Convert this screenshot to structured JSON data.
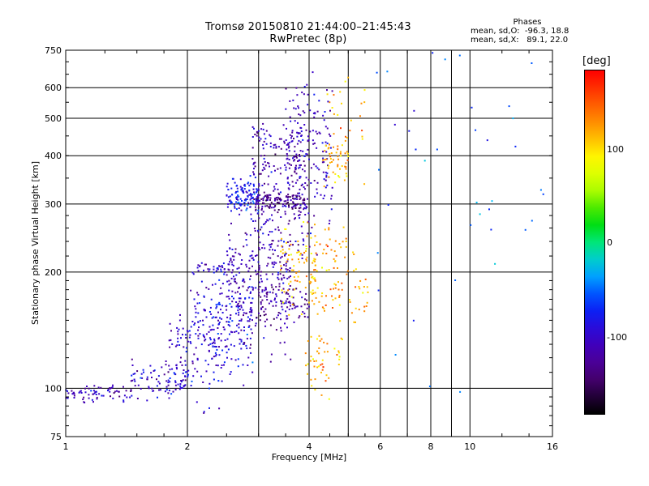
{
  "title_line1": "Tromsø 20150810 21:44:00–21:45:43",
  "title_line2": "RwPretec (8p)",
  "stats": {
    "header": "Phases",
    "row_o": "mean, sd,O:  -96.3, 18.8",
    "row_x": "mean, sd,X:   89.1, 22.0"
  },
  "colorbar": {
    "unit_label": "[deg]",
    "ticks": [
      "100",
      "0",
      "-100"
    ],
    "tick_values": [
      100,
      0,
      -100
    ],
    "range": [
      -180,
      180
    ]
  },
  "chart_data": {
    "type": "scatter",
    "xlabel": "Frequency [MHz]",
    "ylabel": "Stationary phase Virtual Height [km]",
    "xscale": "log",
    "yscale": "log",
    "xlim": [
      1,
      16
    ],
    "ylim": [
      75,
      750
    ],
    "x_ticks": [
      1,
      2,
      4,
      6,
      8,
      10,
      16
    ],
    "x_tick_labels": [
      "1",
      "2",
      "4",
      "6",
      "8",
      "10",
      "16"
    ],
    "y_ticks": [
      75,
      100,
      200,
      300,
      400,
      500,
      600,
      750
    ],
    "y_tick_labels": [
      "75",
      "100",
      "200",
      "300",
      "400",
      "500",
      "600",
      "750"
    ],
    "grid_x": [
      2,
      3,
      4,
      5,
      6,
      7,
      8,
      9,
      10,
      16
    ],
    "grid_y": [
      100,
      200,
      300,
      400,
      500,
      600
    ],
    "clusters": [
      {
        "f_range": [
          1.0,
          1.45
        ],
        "h_center": 97,
        "h_spread": 2.5,
        "phase": -110,
        "count": 70
      },
      {
        "f_range": [
          1.45,
          2.0
        ],
        "h_center": 105,
        "h_spread": 6,
        "phase": -100,
        "count": 90
      },
      {
        "f_range": [
          1.8,
          2.6
        ],
        "h_center": 125,
        "h_spread": 15,
        "phase": -95,
        "count": 120
      },
      {
        "f_range": [
          2.0,
          2.9
        ],
        "h_center": 150,
        "h_spread": 22,
        "phase": -90,
        "count": 180
      },
      {
        "f_range": [
          2.1,
          2.5
        ],
        "h_center": 205,
        "h_spread": 3,
        "phase": -100,
        "count": 30
      },
      {
        "f_range": [
          2.5,
          3.6
        ],
        "h_center": 195,
        "h_spread": 35,
        "phase": -110,
        "count": 250
      },
      {
        "f_range": [
          3.0,
          4.0
        ],
        "h_center": 165,
        "h_spread": 8,
        "phase": -120,
        "count": 80
      },
      {
        "f_range": [
          3.4,
          4.2
        ],
        "h_center": 210,
        "h_spread": 25,
        "phase": 110,
        "count": 90
      },
      {
        "f_range": [
          3.9,
          4.9
        ],
        "h_center": 120,
        "h_spread": 10,
        "phase": 115,
        "count": 50
      },
      {
        "f_range": [
          4.0,
          5.6
        ],
        "h_center": 180,
        "h_spread": 15,
        "phase": 120,
        "count": 60
      },
      {
        "f_range": [
          4.2,
          5.2
        ],
        "h_center": 225,
        "h_spread": 18,
        "phase": 125,
        "count": 30
      },
      {
        "f_range": [
          2.5,
          3.0
        ],
        "h_center": 312,
        "h_spread": 16,
        "phase": -80,
        "count": 130
      },
      {
        "f_range": [
          2.9,
          4.0
        ],
        "h_center": 355,
        "h_spread": 70,
        "phase": -110,
        "count": 220
      },
      {
        "f_range": [
          2.95,
          3.9
        ],
        "h_center": 305,
        "h_spread": 8,
        "phase": -130,
        "count": 110
      },
      {
        "f_range": [
          3.5,
          4.6
        ],
        "h_center": 410,
        "h_spread": 90,
        "phase": -100,
        "count": 160
      },
      {
        "f_range": [
          4.3,
          5.0
        ],
        "h_center": 390,
        "h_spread": 30,
        "phase": 115,
        "count": 50
      },
      {
        "f_range": [
          4.4,
          5.5
        ],
        "h_center": 520,
        "h_spread": 70,
        "phase": 120,
        "count": 25
      },
      {
        "f_range": [
          5.5,
          15.5
        ],
        "h_center": 400,
        "h_spread": 200,
        "phase": -60,
        "count": 45
      }
    ]
  }
}
